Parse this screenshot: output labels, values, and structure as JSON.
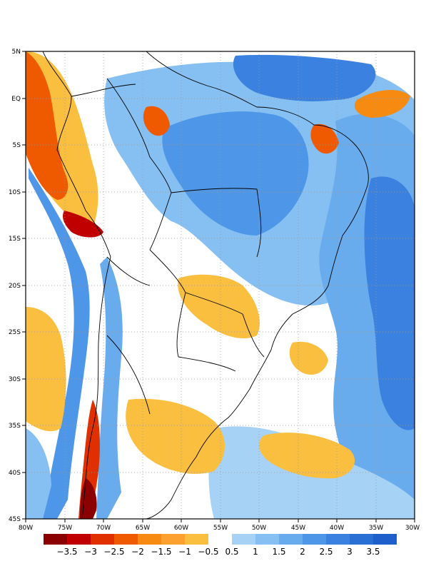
{
  "map": {
    "lat_ticks": [
      "5N",
      "EQ",
      "5S",
      "10S",
      "15S",
      "20S",
      "25S",
      "30S",
      "35S",
      "40S",
      "45S"
    ],
    "lon_ticks": [
      "80W",
      "75W",
      "70W",
      "65W",
      "60W",
      "55W",
      "50W",
      "45W",
      "40W",
      "35W",
      "30W"
    ],
    "extent": {
      "lon_min": -80,
      "lon_max": -30,
      "lat_min": -45,
      "lat_max": 5
    },
    "gridlines": "dotted"
  },
  "colorbar": {
    "labels": [
      "−3.5",
      "−3",
      "−2.5",
      "−2",
      "−1.5",
      "−1",
      "−0.5",
      "0.5",
      "1",
      "1.5",
      "2",
      "2.5",
      "3",
      "3.5"
    ],
    "neg_colors": [
      "#8b0000",
      "#c00000",
      "#e03000",
      "#ef5a00",
      "#f78a10",
      "#fca030",
      "#fbbf40"
    ],
    "pos_colors": [
      "#a6d2f5",
      "#86c0f2",
      "#69acee",
      "#4e97e8",
      "#3b82e0",
      "#2a6fd4",
      "#1f5fcc"
    ]
  }
}
